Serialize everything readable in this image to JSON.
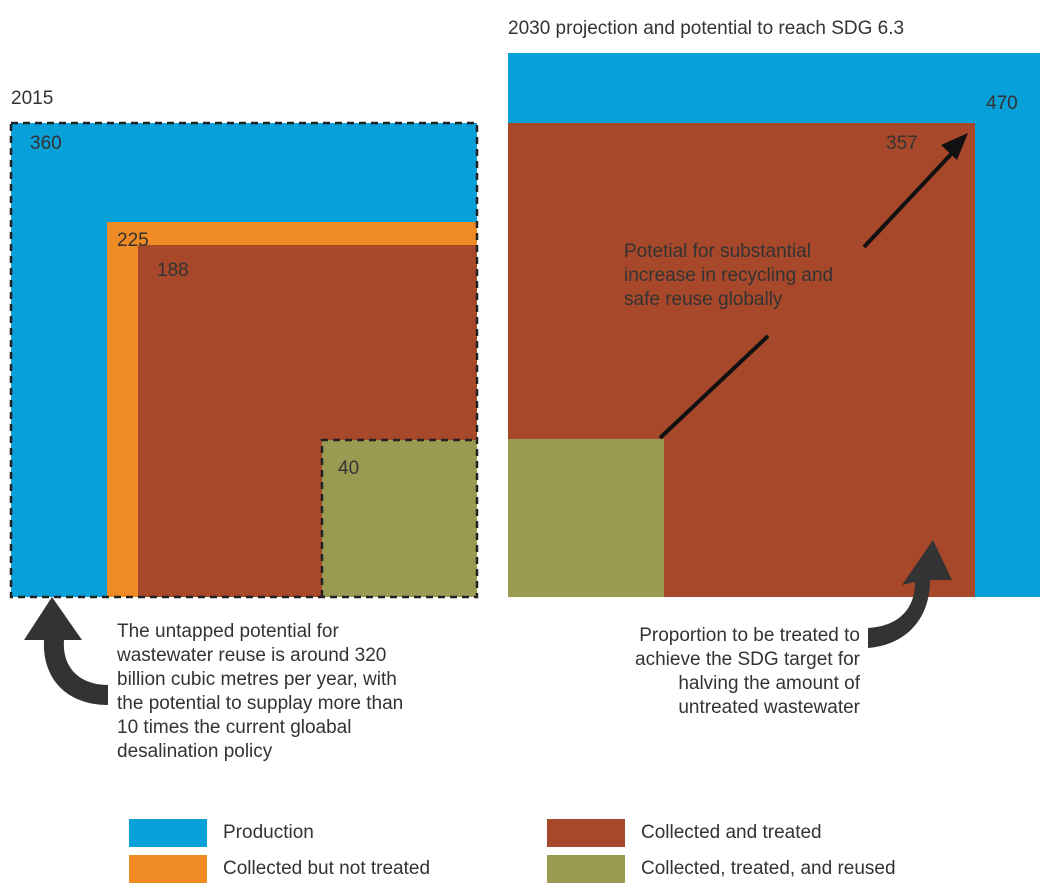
{
  "colors": {
    "production": "#08a0d8",
    "collected_not_treated": "#f08a24",
    "collected_treated": "#a8482a",
    "reused": "#9a9a52",
    "arrow": "#333333"
  },
  "left_panel": {
    "title": "2015",
    "production": "360",
    "collected": "225",
    "treated": "188",
    "reused": "40"
  },
  "right_panel": {
    "title": "2030 projection and potential to reach SDG 6.3",
    "production": "470",
    "treated": "357",
    "potential_note": [
      "Potetial for substantial",
      "increase in recycling and",
      "safe reuse globally"
    ]
  },
  "notes": {
    "untapped": [
      "The untapped potential for",
      "wastewater reuse is around 320",
      "billion cubic metres per year, with",
      "the potential to supplay more than",
      "10 times the current gloabal",
      "desalination policy"
    ],
    "proportion": [
      "Proportion to be treated to",
      "achieve the SDG target for",
      "halving the amount of",
      "untreated wastewater"
    ]
  },
  "legend": [
    {
      "label": "Production",
      "color_key": "production"
    },
    {
      "label": "Collected and treated",
      "color_key": "collected_treated"
    },
    {
      "label": "Collected but not treated",
      "color_key": "collected_not_treated"
    },
    {
      "label": "Collected, treated, and reused",
      "color_key": "reused"
    }
  ]
}
